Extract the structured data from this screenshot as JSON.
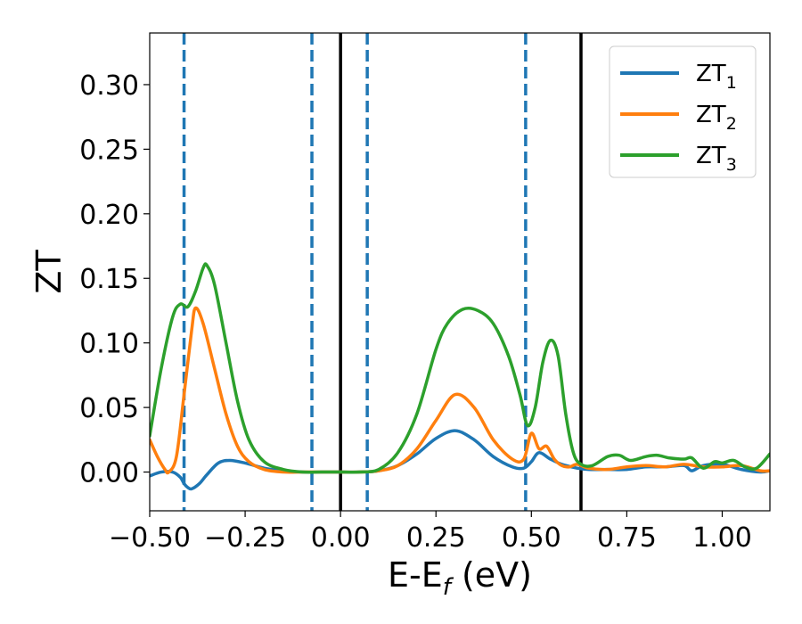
{
  "chart_data": {
    "type": "line",
    "xlabel": "E-E",
    "xlabel_sub": "f",
    "xlabel_unit": " (eV)",
    "ylabel": "ZT",
    "xlim": [
      -0.5,
      1.125
    ],
    "ylim": [
      -0.03,
      0.34
    ],
    "xticks": [
      -0.5,
      -0.25,
      0.0,
      0.25,
      0.5,
      0.75,
      1.0
    ],
    "xtick_labels": [
      "−0.50",
      "−0.25",
      "0.00",
      "0.25",
      "0.50",
      "0.75",
      "1.00"
    ],
    "yticks": [
      0.0,
      0.05,
      0.1,
      0.15,
      0.2,
      0.25,
      0.3
    ],
    "ytick_labels": [
      "0.00",
      "0.05",
      "0.10",
      "0.15",
      "0.20",
      "0.25",
      "0.30"
    ],
    "grid": false,
    "legend_position": "top-right",
    "vlines_dashed": [
      -0.41,
      -0.075,
      0.07,
      0.485
    ],
    "vlines_dashed_color": "#1f77b4",
    "vlines_solid": [
      0.0,
      0.63
    ],
    "vlines_solid_color": "#000000",
    "series": [
      {
        "name": "ZT",
        "name_sub": "1",
        "color": "#1f77b4",
        "x": [
          -0.5,
          -0.47,
          -0.44,
          -0.42,
          -0.41,
          -0.4,
          -0.39,
          -0.37,
          -0.35,
          -0.32,
          -0.29,
          -0.25,
          -0.2,
          -0.15,
          -0.1,
          -0.05,
          0.0,
          0.05,
          0.1,
          0.15,
          0.2,
          0.25,
          0.3,
          0.35,
          0.4,
          0.45,
          0.48,
          0.5,
          0.52,
          0.55,
          0.58,
          0.62,
          0.65,
          0.7,
          0.75,
          0.8,
          0.85,
          0.9,
          0.92,
          0.95,
          1.0,
          1.05,
          1.1,
          1.125
        ],
        "y": [
          -0.003,
          0.0,
          0.0,
          -0.004,
          -0.009,
          -0.012,
          -0.013,
          -0.009,
          -0.002,
          0.007,
          0.009,
          0.007,
          0.003,
          0.001,
          0.0,
          0.0,
          0.0,
          0.0,
          0.001,
          0.005,
          0.014,
          0.026,
          0.032,
          0.025,
          0.012,
          0.004,
          0.003,
          0.008,
          0.015,
          0.01,
          0.006,
          0.003,
          0.002,
          0.002,
          0.002,
          0.004,
          0.004,
          0.005,
          0.001,
          0.005,
          0.006,
          0.002,
          0.0,
          0.001
        ]
      },
      {
        "name": "ZT",
        "name_sub": "2",
        "color": "#ff7f0e",
        "x": [
          -0.5,
          -0.48,
          -0.46,
          -0.45,
          -0.43,
          -0.41,
          -0.39,
          -0.38,
          -0.36,
          -0.33,
          -0.3,
          -0.27,
          -0.24,
          -0.2,
          -0.15,
          -0.1,
          -0.05,
          0.0,
          0.05,
          0.1,
          0.15,
          0.2,
          0.25,
          0.3,
          0.35,
          0.4,
          0.45,
          0.48,
          0.5,
          0.52,
          0.54,
          0.56,
          0.58,
          0.6,
          0.62,
          0.65,
          0.7,
          0.75,
          0.8,
          0.85,
          0.9,
          0.95,
          1.0,
          1.05,
          1.1,
          1.125
        ],
        "y": [
          0.025,
          0.012,
          0.002,
          0.0,
          0.012,
          0.06,
          0.11,
          0.127,
          0.115,
          0.08,
          0.045,
          0.02,
          0.008,
          0.002,
          0.0,
          0.0,
          0.0,
          0.0,
          0.0,
          0.001,
          0.005,
          0.018,
          0.04,
          0.06,
          0.05,
          0.025,
          0.01,
          0.01,
          0.03,
          0.018,
          0.02,
          0.01,
          0.005,
          0.004,
          0.006,
          0.003,
          0.002,
          0.004,
          0.005,
          0.004,
          0.006,
          0.004,
          0.004,
          0.005,
          0.001,
          0.001
        ]
      },
      {
        "name": "ZT",
        "name_sub": "3",
        "color": "#2ca02c",
        "x": [
          -0.5,
          -0.47,
          -0.44,
          -0.42,
          -0.4,
          -0.38,
          -0.36,
          -0.35,
          -0.33,
          -0.3,
          -0.27,
          -0.24,
          -0.2,
          -0.15,
          -0.1,
          -0.05,
          0.0,
          0.05,
          0.1,
          0.15,
          0.2,
          0.25,
          0.28,
          0.32,
          0.36,
          0.4,
          0.44,
          0.47,
          0.49,
          0.51,
          0.53,
          0.55,
          0.57,
          0.59,
          0.61,
          0.63,
          0.66,
          0.7,
          0.73,
          0.76,
          0.8,
          0.83,
          0.86,
          0.9,
          0.92,
          0.95,
          0.98,
          1.0,
          1.03,
          1.06,
          1.09,
          1.125
        ],
        "y": [
          0.028,
          0.08,
          0.12,
          0.13,
          0.128,
          0.14,
          0.158,
          0.16,
          0.145,
          0.1,
          0.055,
          0.025,
          0.008,
          0.002,
          0.0,
          0.0,
          0.0,
          0.0,
          0.002,
          0.015,
          0.045,
          0.095,
          0.115,
          0.126,
          0.125,
          0.115,
          0.09,
          0.06,
          0.036,
          0.05,
          0.085,
          0.102,
          0.09,
          0.045,
          0.015,
          0.006,
          0.005,
          0.012,
          0.013,
          0.009,
          0.012,
          0.013,
          0.011,
          0.01,
          0.011,
          0.003,
          0.008,
          0.007,
          0.009,
          0.004,
          0.003,
          0.014
        ]
      }
    ]
  }
}
